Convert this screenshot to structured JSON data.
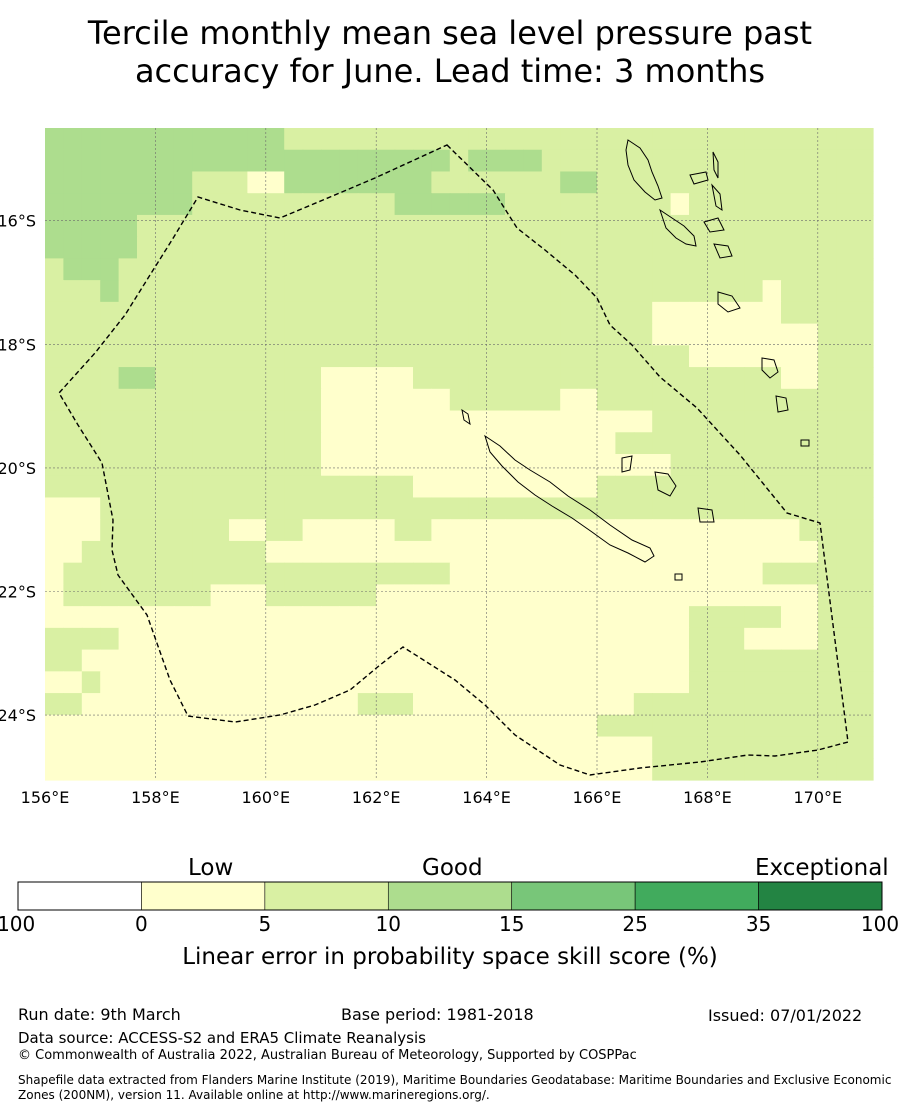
{
  "title": {
    "line1": "Tercile monthly mean sea level pressure past",
    "line2": "accuracy for June. Lead time: 3 months"
  },
  "map": {
    "lon_labels": [
      "156°E",
      "158°E",
      "160°E",
      "162°E",
      "164°E",
      "166°E",
      "168°E",
      "170°E"
    ],
    "lat_labels": [
      "16°S",
      "18°S",
      "20°S",
      "22°S",
      "24°S"
    ],
    "lon_values": [
      156,
      158,
      160,
      162,
      164,
      166,
      168,
      170
    ],
    "lat_values": [
      -16,
      -18,
      -20,
      -22,
      -24
    ],
    "extent": {
      "lon_min": 156,
      "lon_max": 171,
      "lat_min": -25.05,
      "lat_max": -14.5
    },
    "boundary": "dashed-eez-outline",
    "gridlines": true
  },
  "colorbar": {
    "categories": [
      "Low",
      "Good",
      "Exceptional"
    ],
    "ticks": [
      "-100",
      "0",
      "5",
      "10",
      "15",
      "25",
      "35",
      "100"
    ],
    "colors": [
      "#ffffff",
      "#ffffcc",
      "#d9f0a3",
      "#addd8e",
      "#78c679",
      "#41ab5d",
      "#238443"
    ],
    "label": "Linear error in probability space skill score (%)"
  },
  "footer": {
    "run_date": "Run date: 9th March",
    "base_period": "Base period: 1981-2018",
    "issued": "Issued: 07/01/2022",
    "data_source": "Data source: ACCESS-S2 and ERA5 Climate Reanalysis",
    "copyright": "© Commonwealth of Australia 2022, Australian Bureau of Meteorology, Supported by COSPPac",
    "shapefile": "Shapefile data extracted from Flanders Marine Institute (2019), Maritime Boundaries Geodatabase: Maritime Boundaries and Exclusive Economic Zones (200NM), version 11. Available online at http://www.marineregions.org/."
  }
}
